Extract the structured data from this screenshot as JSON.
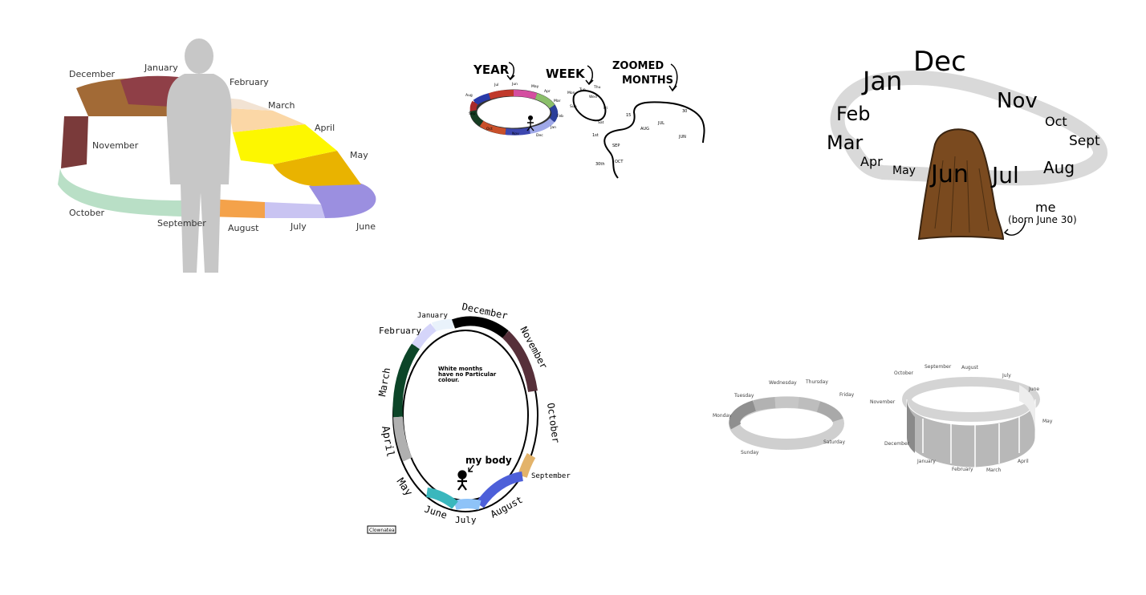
{
  "panel1": {
    "months": [
      "December",
      "January",
      "February",
      "March",
      "April",
      "May",
      "November",
      "October",
      "September",
      "August",
      "July",
      "June"
    ]
  },
  "panel2": {
    "headers": [
      "YEAR",
      "WEEK",
      "ZOOMED",
      "MONTHS"
    ],
    "small_labels": [
      "Jul",
      "Jun",
      "May",
      "Apr",
      "Mar",
      "Feb",
      "Jan",
      "Dec",
      "Nov",
      "Oct",
      "Sep",
      "Aug",
      "Mon",
      "Tue",
      "Wed",
      "Thu",
      "Fri",
      "Sat",
      "Sun",
      "SEP",
      "AUG",
      "JUL",
      "JUN",
      "OCT",
      "15",
      "30",
      "1st",
      "30th"
    ]
  },
  "panel3": {
    "months": [
      "Jan",
      "Dec",
      "Nov",
      "Feb",
      "Oct",
      "Mar",
      "Sept",
      "Apr",
      "May",
      "Jun",
      "Jul",
      "Aug"
    ],
    "me": "me",
    "born": "(born June 30)"
  },
  "panel4": {
    "months": [
      "January",
      "December",
      "November",
      "February",
      "March",
      "October",
      "April",
      "September",
      "May",
      "June",
      "July",
      "August"
    ],
    "note_lines": [
      "White months",
      "have no Particular",
      "colour."
    ],
    "my_body": "my body",
    "signature": "Clownatea"
  },
  "panel5": {
    "days": [
      "Thursday",
      "Wednesday",
      "Friday",
      "Tuesday",
      "Monday",
      "Saturday",
      "Sunday"
    ],
    "months": [
      "October",
      "September",
      "August",
      "July",
      "June",
      "November",
      "May",
      "December",
      "January",
      "February",
      "March",
      "April"
    ]
  },
  "colors": {
    "p1": [
      "#a26a36",
      "#8f3f47",
      "#f2e3d3",
      "#fbd7a6",
      "#fdf700",
      "#e9b300",
      "#9b8fe0",
      "#c9c4f2",
      "#f4a24a",
      "#b9dfc6",
      "#7a3a3a"
    ],
    "p4": [
      "#e9f2fb",
      "#000000",
      "#57303a",
      "#d5d5fa",
      "#0c4528",
      "#b0b0b0",
      "#e3b36a",
      "#4d5fd9",
      "#8ec3f8",
      "#3ab7bd"
    ]
  }
}
